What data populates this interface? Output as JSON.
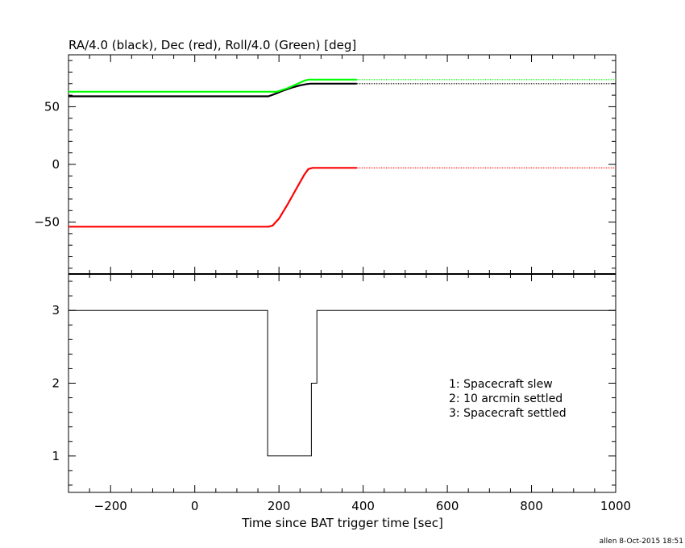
{
  "chart_data": [
    {
      "type": "line",
      "title": "RA/4.0 (black), Dec (red), Roll/4.0 (Green) [deg]",
      "xlim": [
        -300,
        1000
      ],
      "ylim": [
        -95,
        95
      ],
      "yticks": [
        -50,
        0,
        50
      ],
      "grid": false,
      "series": [
        {
          "name": "RA/4.0",
          "color": "#000000",
          "solid": [
            [
              -300,
              59
            ],
            [
              175,
              59
            ],
            [
              190,
              61
            ],
            [
              210,
              64
            ],
            [
              230,
              66.5
            ],
            [
              250,
              68.5
            ],
            [
              265,
              69.6
            ],
            [
              275,
              70
            ],
            [
              385,
              70
            ]
          ],
          "dotted": [
            [
              385,
              70
            ],
            [
              1000,
              70
            ]
          ]
        },
        {
          "name": "Dec",
          "color": "#ff0000",
          "solid": [
            [
              -300,
              -54
            ],
            [
              175,
              -54
            ],
            [
              185,
              -53
            ],
            [
              200,
              -47
            ],
            [
              220,
              -35
            ],
            [
              240,
              -22
            ],
            [
              260,
              -9
            ],
            [
              270,
              -4
            ],
            [
              280,
              -3
            ],
            [
              385,
              -3
            ]
          ],
          "dotted": [
            [
              385,
              -3
            ],
            [
              1000,
              -3
            ]
          ]
        },
        {
          "name": "Roll/4.0",
          "color": "#00ff00",
          "solid": [
            [
              -300,
              63
            ],
            [
              195,
              63
            ],
            [
              220,
              66
            ],
            [
              245,
              70
            ],
            [
              260,
              72.5
            ],
            [
              270,
              73.5
            ],
            [
              385,
              73.5
            ]
          ],
          "dotted": [
            [
              385,
              73.5
            ],
            [
              1000,
              73.5
            ]
          ]
        }
      ]
    },
    {
      "type": "line",
      "xlabel": "Time since BAT trigger time [sec]",
      "xlim": [
        -300,
        1000
      ],
      "ylim": [
        0.5,
        3.5
      ],
      "xticks": [
        -200,
        0,
        200,
        400,
        600,
        800,
        1000
      ],
      "yticks": [
        1,
        2,
        3
      ],
      "grid": false,
      "legend_location": "right",
      "legend": [
        "1: Spacecraft slew",
        "2: 10 arcmin settled",
        "3: Spacecraft settled"
      ],
      "series": [
        {
          "color": "#000000",
          "step": [
            [
              -300,
              3
            ],
            [
              173,
              3
            ],
            [
              173,
              1
            ],
            [
              277,
              1
            ],
            [
              277,
              2
            ],
            [
              290,
              2
            ],
            [
              290,
              3
            ],
            [
              1000,
              3
            ]
          ]
        }
      ]
    }
  ],
  "footer": "allen  8-Oct-2015 18:51"
}
